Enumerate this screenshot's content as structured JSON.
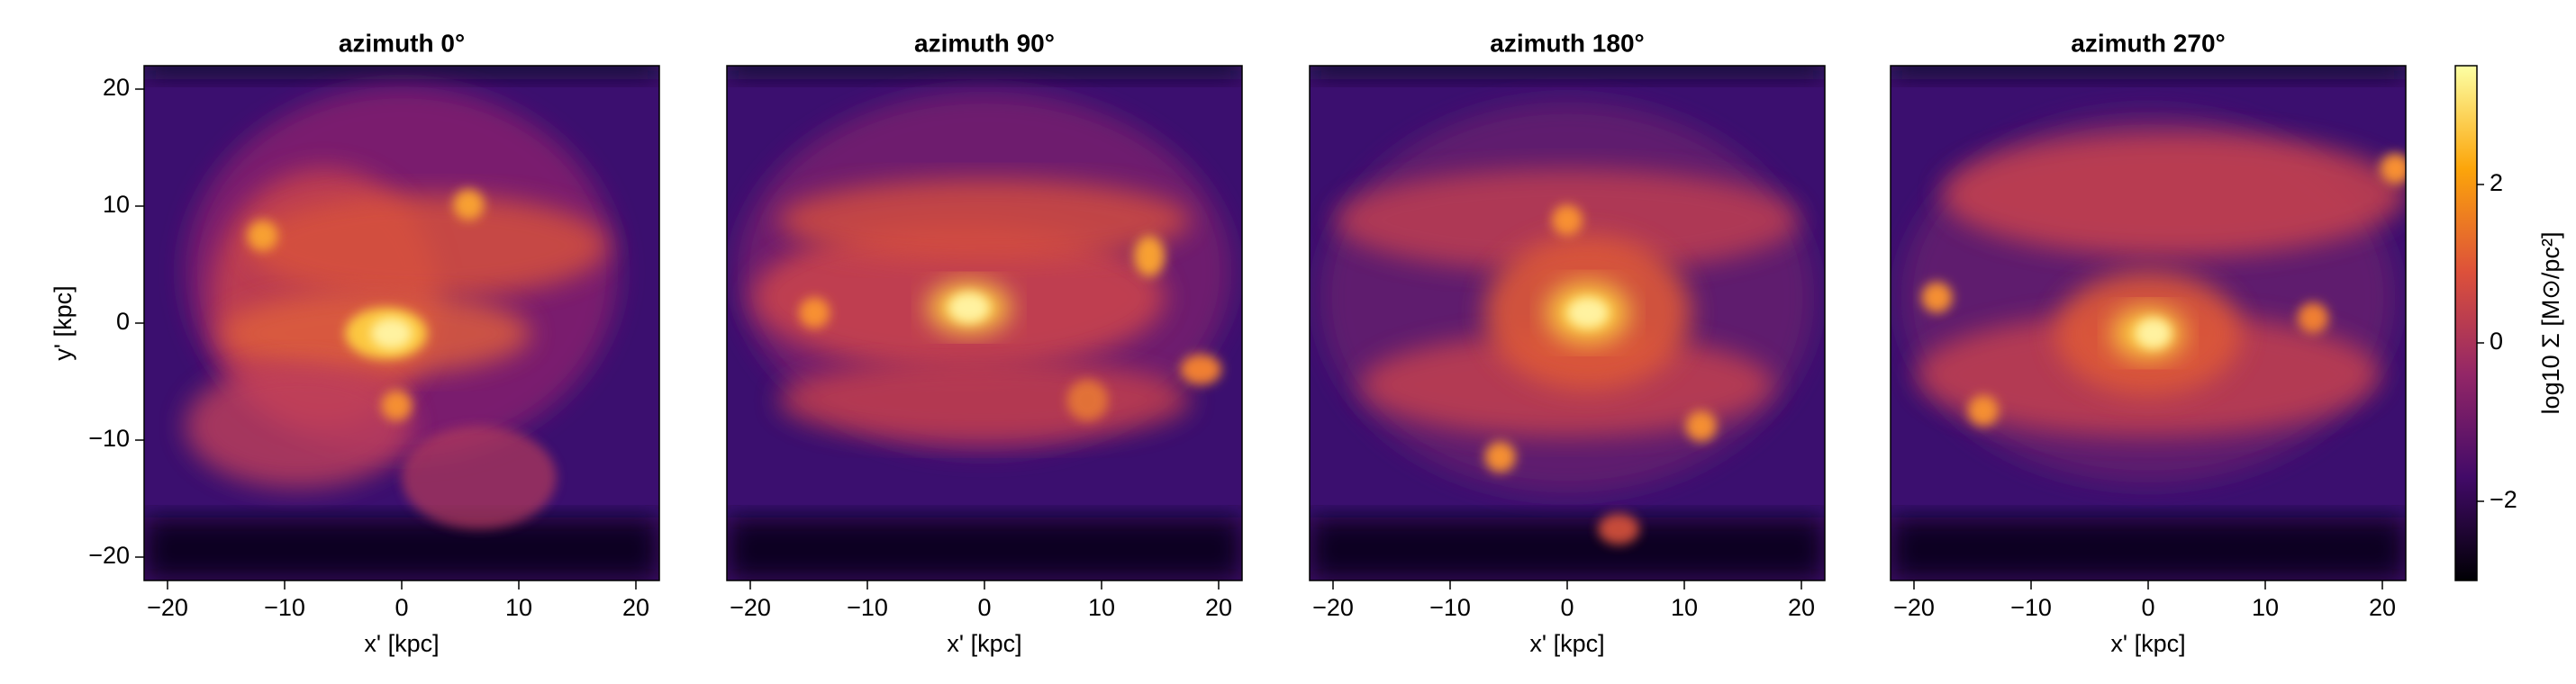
{
  "chart_data": [
    {
      "type": "heatmap",
      "title": "azimuth 0°",
      "xlabel": "x' [kpc]",
      "ylabel": "y' [kpc]",
      "xlim": [
        -22,
        22
      ],
      "ylim": [
        -22,
        22
      ],
      "xticks": [
        {
          "value": -20,
          "label": "−20"
        },
        {
          "value": -10,
          "label": "−10"
        },
        0,
        10,
        20
      ],
      "yticks": [
        {
          "value": -20,
          "label": "−20"
        },
        {
          "value": -10,
          "label": "−10"
        },
        0,
        10,
        20
      ]
    },
    {
      "type": "heatmap",
      "title": "azimuth 90°",
      "xlabel": "x' [kpc]",
      "xlim": [
        -22,
        22
      ],
      "ylim": [
        -22,
        22
      ],
      "xticks": [
        {
          "value": -20,
          "label": "−20"
        },
        {
          "value": -10,
          "label": "−10"
        },
        0,
        10,
        20
      ]
    },
    {
      "type": "heatmap",
      "title": "azimuth 180°",
      "xlabel": "x' [kpc]",
      "xlim": [
        -22,
        22
      ],
      "ylim": [
        -22,
        22
      ],
      "xticks": [
        {
          "value": -20,
          "label": "−20"
        },
        {
          "value": -10,
          "label": "−10"
        },
        0,
        10,
        20
      ]
    },
    {
      "type": "heatmap",
      "title": "azimuth 270°",
      "xlabel": "x' [kpc]",
      "xlim": [
        -22,
        22
      ],
      "ylim": [
        -22,
        22
      ],
      "xticks": [
        {
          "value": -20,
          "label": "−20"
        },
        {
          "value": -10,
          "label": "−10"
        },
        0,
        10,
        20
      ]
    }
  ],
  "colorbar": {
    "label": "log10 Σ  [M⊙/pc²]",
    "clim": [
      -3,
      3.5
    ],
    "ticks": [
      {
        "value": -2,
        "label": "−2"
      },
      0,
      2
    ],
    "colors": [
      "#000004",
      "#420a68",
      "#932667",
      "#dd513a",
      "#fca50a",
      "#fcffa4"
    ]
  }
}
